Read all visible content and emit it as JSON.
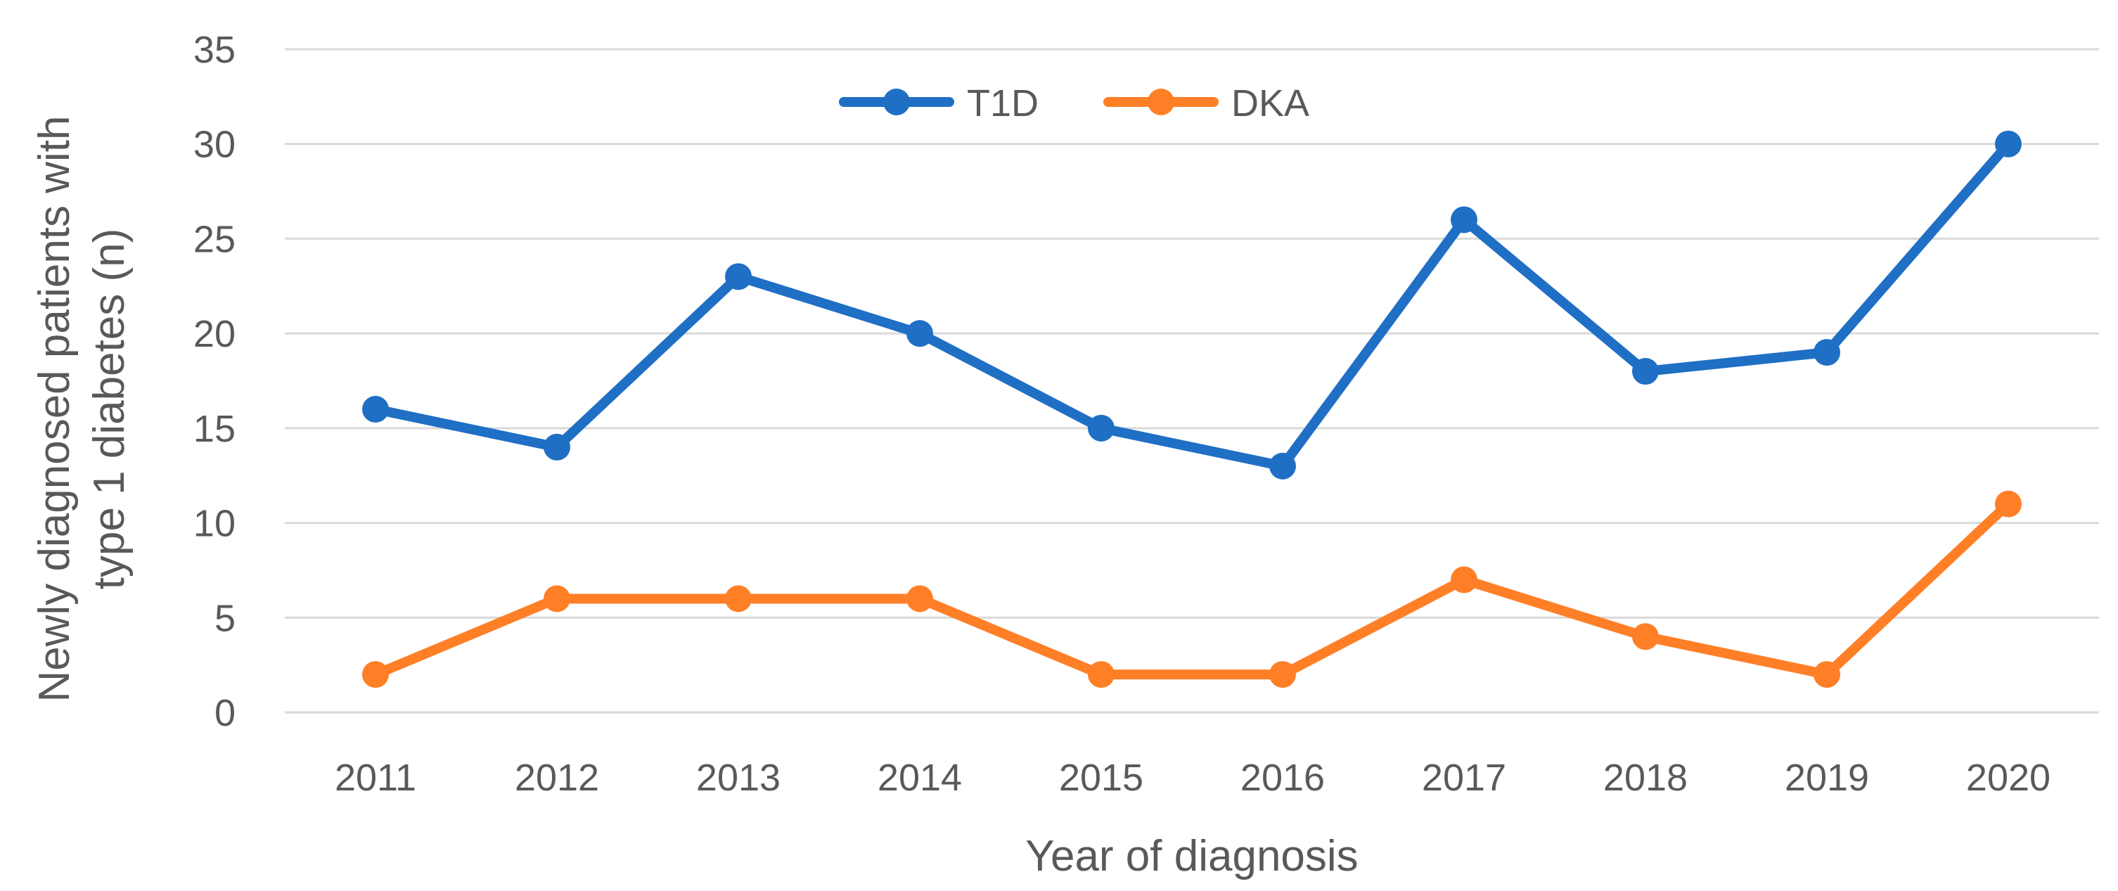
{
  "chart_data": {
    "type": "line",
    "title": "",
    "xlabel": "Year of diagnosis",
    "ylabel_lines": [
      "Newly diagnosed patients with",
      "type 1 diabetes (n)"
    ],
    "categories": [
      "2011",
      "2012",
      "2013",
      "2014",
      "2015",
      "2016",
      "2017",
      "2018",
      "2019",
      "2020"
    ],
    "ylim": [
      0,
      35
    ],
    "yticks": [
      "0",
      "5",
      "10",
      "15",
      "20",
      "25",
      "30",
      "35"
    ],
    "grid": true,
    "legend_position": "top-center",
    "series": [
      {
        "name": "T1D",
        "color": "#1f6fc5",
        "values": [
          16,
          14,
          23,
          20,
          15,
          13,
          26,
          18,
          19,
          30
        ]
      },
      {
        "name": "DKA",
        "color": "#ff7f27",
        "values": [
          2,
          6,
          6,
          6,
          2,
          2,
          7,
          4,
          2,
          11
        ]
      }
    ]
  }
}
